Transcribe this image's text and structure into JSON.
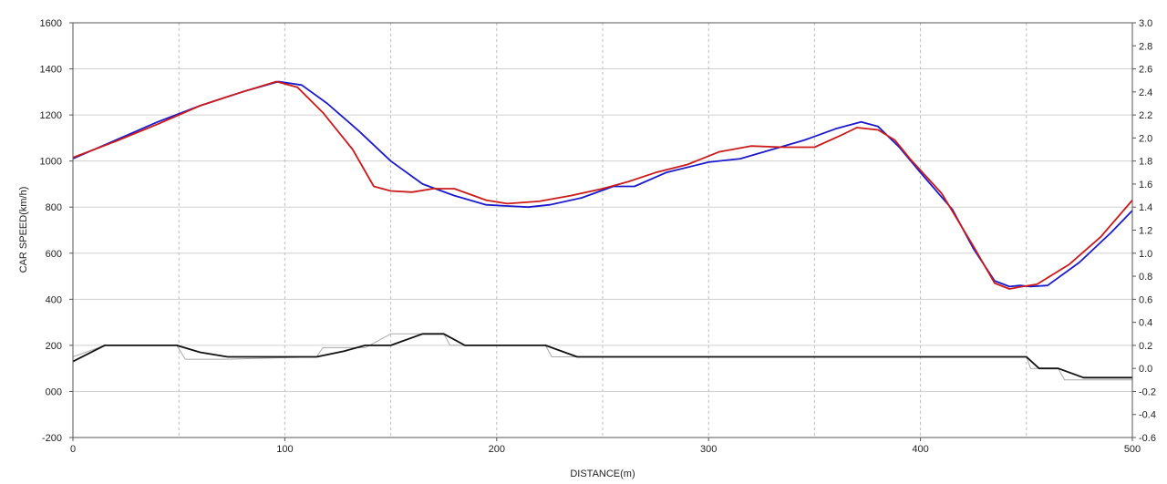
{
  "chart_data": {
    "type": "line",
    "xlabel": "DISTANCE(m)",
    "ylabel": "CAR SPEED(km/h)",
    "xlim": [
      0,
      500
    ],
    "ylim": [
      -200,
      1600
    ],
    "y2lim": [
      -0.6,
      3.0
    ],
    "x_ticks": [
      "0",
      "100",
      "200",
      "300",
      "400",
      "500"
    ],
    "y_ticks": [
      "-200",
      "000",
      "200",
      "400",
      "600",
      "800",
      "1000",
      "1200",
      "1400",
      "1600"
    ],
    "y2_ticks": [
      "-0.6",
      "-0.4",
      "-0.2",
      "0.0",
      "0.2",
      "0.4",
      "0.6",
      "0.8",
      "1.0",
      "1.2",
      "1.4",
      "1.6",
      "1.8",
      "2.0",
      "2.2",
      "2.4",
      "2.6",
      "2.8",
      "3.0"
    ],
    "grid": {
      "vertical_dashed_every": 50,
      "horizontal_solid_every": 200
    },
    "series": [
      {
        "color": "#1a1acc",
        "axis": "left",
        "points": [
          [
            0,
            1010
          ],
          [
            20,
            1090
          ],
          [
            40,
            1170
          ],
          [
            60,
            1240
          ],
          [
            80,
            1300
          ],
          [
            97,
            1345
          ],
          [
            108,
            1330
          ],
          [
            120,
            1250
          ],
          [
            135,
            1130
          ],
          [
            150,
            1000
          ],
          [
            165,
            900
          ],
          [
            180,
            850
          ],
          [
            195,
            810
          ],
          [
            205,
            805
          ],
          [
            215,
            800
          ],
          [
            225,
            810
          ],
          [
            240,
            840
          ],
          [
            255,
            890
          ],
          [
            265,
            890
          ],
          [
            280,
            950
          ],
          [
            300,
            995
          ],
          [
            315,
            1010
          ],
          [
            330,
            1050
          ],
          [
            345,
            1090
          ],
          [
            360,
            1140
          ],
          [
            372,
            1170
          ],
          [
            380,
            1150
          ],
          [
            390,
            1060
          ],
          [
            400,
            950
          ],
          [
            415,
            790
          ],
          [
            425,
            620
          ],
          [
            435,
            480
          ],
          [
            442,
            455
          ],
          [
            447,
            460
          ],
          [
            452,
            455
          ],
          [
            460,
            460
          ],
          [
            475,
            560
          ],
          [
            490,
            690
          ],
          [
            500,
            785
          ]
        ]
      },
      {
        "color": "#cc1a1a",
        "axis": "left",
        "points": [
          [
            0,
            1015
          ],
          [
            20,
            1085
          ],
          [
            40,
            1160
          ],
          [
            60,
            1240
          ],
          [
            80,
            1300
          ],
          [
            96,
            1345
          ],
          [
            106,
            1320
          ],
          [
            118,
            1210
          ],
          [
            132,
            1050
          ],
          [
            142,
            890
          ],
          [
            150,
            870
          ],
          [
            160,
            865
          ],
          [
            170,
            880
          ],
          [
            180,
            880
          ],
          [
            195,
            830
          ],
          [
            205,
            815
          ],
          [
            220,
            825
          ],
          [
            235,
            850
          ],
          [
            250,
            880
          ],
          [
            262,
            910
          ],
          [
            275,
            950
          ],
          [
            290,
            985
          ],
          [
            305,
            1040
          ],
          [
            320,
            1065
          ],
          [
            335,
            1060
          ],
          [
            350,
            1060
          ],
          [
            362,
            1110
          ],
          [
            370,
            1145
          ],
          [
            380,
            1135
          ],
          [
            388,
            1090
          ],
          [
            395,
            1010
          ],
          [
            410,
            860
          ],
          [
            425,
            630
          ],
          [
            435,
            470
          ],
          [
            442,
            445
          ],
          [
            448,
            455
          ],
          [
            455,
            465
          ],
          [
            470,
            550
          ],
          [
            485,
            670
          ],
          [
            500,
            830
          ]
        ]
      },
      {
        "color": "#111111",
        "axis": "right",
        "points": [
          [
            0,
            0.06
          ],
          [
            15,
            0.2
          ],
          [
            49,
            0.2
          ],
          [
            60,
            0.14
          ],
          [
            73,
            0.1
          ],
          [
            115,
            0.1
          ],
          [
            128,
            0.15
          ],
          [
            138,
            0.2
          ],
          [
            150,
            0.2
          ],
          [
            165,
            0.3
          ],
          [
            175,
            0.3
          ],
          [
            185,
            0.2
          ],
          [
            223,
            0.2
          ],
          [
            238,
            0.1
          ],
          [
            450,
            0.1
          ],
          [
            456,
            0.0
          ],
          [
            465,
            0.0
          ],
          [
            477,
            -0.08
          ],
          [
            500,
            -0.08
          ]
        ]
      },
      {
        "color": "#a9a9a9",
        "axis": "right",
        "points": [
          [
            0,
            0.1
          ],
          [
            15,
            0.2
          ],
          [
            49,
            0.2
          ],
          [
            53,
            0.08
          ],
          [
            73,
            0.08
          ],
          [
            115,
            0.1
          ],
          [
            118,
            0.18
          ],
          [
            138,
            0.18
          ],
          [
            150,
            0.3
          ],
          [
            175,
            0.3
          ],
          [
            178,
            0.2
          ],
          [
            223,
            0.2
          ],
          [
            226,
            0.1
          ],
          [
            450,
            0.1
          ],
          [
            452,
            0.0
          ],
          [
            465,
            0.0
          ],
          [
            468,
            -0.1
          ],
          [
            477,
            -0.1
          ],
          [
            500,
            -0.1
          ]
        ]
      }
    ]
  }
}
